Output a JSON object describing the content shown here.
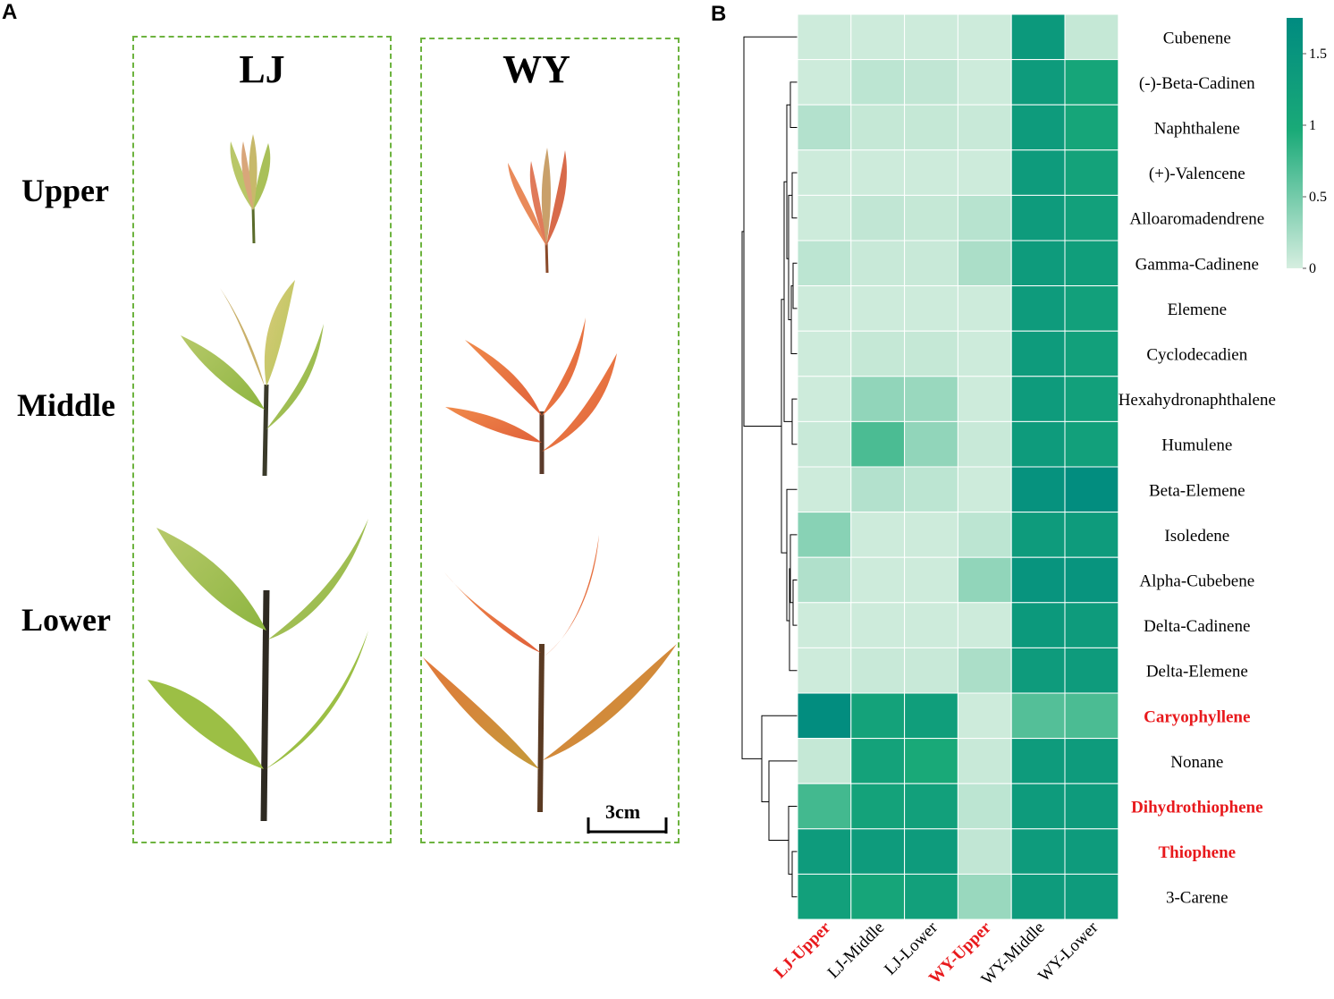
{
  "panel_a": {
    "letter": "A",
    "columns": [
      "LJ",
      "WY"
    ],
    "rows": [
      "Upper",
      "Middle",
      "Lower"
    ],
    "scale_bar": "3cm"
  },
  "panel_b": {
    "letter": "B"
  },
  "colors": {
    "low": "#d6eee0",
    "mid": "#1aaa78",
    "high": "#008b80",
    "highlight": "#e8191c",
    "box": "#6db33f"
  },
  "chart_data": {
    "type": "heatmap",
    "columns": [
      "LJ-Upper",
      "LJ-Middle",
      "LJ-Lower",
      "WY-Upper",
      "WY-Middle",
      "WY-Lower"
    ],
    "highlighted_columns": [
      "LJ-Upper",
      "WY-Upper"
    ],
    "rows": [
      "Cubenene",
      "(-)-Beta-Cadinen",
      "Naphthalene",
      "(+)-Valencene",
      "Alloaromadendrene",
      "Gamma-Cadinene",
      "Elemene",
      "Cyclodecadien",
      "Hexahydronaphthalene",
      "Humulene",
      "Beta-Elemene",
      "Isoledene",
      "Alpha-Cubebene",
      "Delta-Cadinene",
      "Delta-Elemene",
      "Caryophyllene",
      "Nonane",
      "Dihydrothiophene",
      "Thiophene",
      "3-Carene"
    ],
    "highlighted_rows": [
      "Caryophyllene",
      "Dihydrothiophene",
      "Thiophene"
    ],
    "values": [
      [
        0.05,
        0.05,
        0.05,
        0.05,
        1.45,
        0.1
      ],
      [
        0.05,
        0.15,
        0.12,
        0.05,
        1.4,
        1.2
      ],
      [
        0.2,
        0.1,
        0.1,
        0.08,
        1.4,
        1.2
      ],
      [
        0.05,
        0.05,
        0.05,
        0.05,
        1.4,
        1.25
      ],
      [
        0.05,
        0.12,
        0.1,
        0.18,
        1.4,
        1.3
      ],
      [
        0.15,
        0.08,
        0.08,
        0.25,
        1.4,
        1.35
      ],
      [
        0.05,
        0.05,
        0.05,
        0.05,
        1.4,
        1.3
      ],
      [
        0.05,
        0.1,
        0.1,
        0.05,
        1.4,
        1.3
      ],
      [
        0.05,
        0.4,
        0.35,
        0.05,
        1.4,
        1.3
      ],
      [
        0.08,
        0.8,
        0.4,
        0.08,
        1.4,
        1.3
      ],
      [
        0.05,
        0.2,
        0.15,
        0.05,
        1.6,
        1.7
      ],
      [
        0.45,
        0.05,
        0.05,
        0.15,
        1.4,
        1.4
      ],
      [
        0.22,
        0.05,
        0.05,
        0.4,
        1.55,
        1.55
      ],
      [
        0.05,
        0.05,
        0.05,
        0.05,
        1.45,
        1.4
      ],
      [
        0.05,
        0.08,
        0.08,
        0.25,
        1.4,
        1.4
      ],
      [
        1.7,
        1.25,
        1.35,
        0.05,
        0.75,
        0.8
      ],
      [
        0.1,
        1.25,
        1.1,
        0.08,
        1.4,
        1.4
      ],
      [
        0.85,
        1.25,
        1.3,
        0.15,
        1.4,
        1.4
      ],
      [
        1.4,
        1.4,
        1.4,
        0.12,
        1.4,
        1.4
      ],
      [
        1.3,
        1.2,
        1.3,
        0.35,
        1.4,
        1.4
      ]
    ],
    "colorbar": {
      "ticks": [
        "0",
        "0.5",
        "1",
        "1.5"
      ],
      "tick_values": [
        0,
        0.5,
        1,
        1.5
      ],
      "range": [
        0,
        1.75
      ]
    },
    "dendrogram": "hierarchical clustering of rows (left side)",
    "title": "",
    "xlabel": "",
    "ylabel": ""
  }
}
